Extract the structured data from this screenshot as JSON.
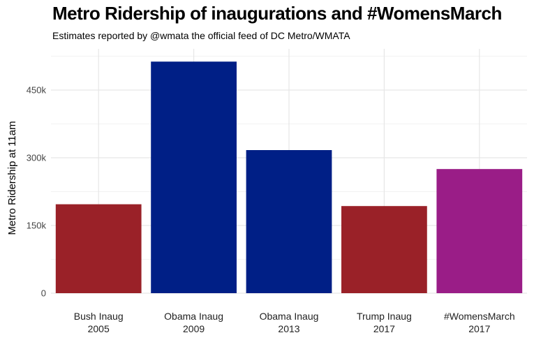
{
  "chart_data": {
    "type": "bar",
    "title": "Metro Ridership of inaugurations and #WomensMarch",
    "subtitle": "Estimates reported by @wmata the official feed of DC Metro/WMATA",
    "xlabel": "",
    "ylabel": "Metro Ridership at 11am",
    "ylim": [
      0,
      520000
    ],
    "yticks": [
      0,
      150000,
      300000,
      450000
    ],
    "ytick_labels": [
      "0",
      "150k",
      "300k",
      "450k"
    ],
    "grid": true,
    "categories": [
      [
        "Bush Inaug",
        "2005"
      ],
      [
        "Obama Inaug",
        "2009"
      ],
      [
        "Obama Inaug",
        "2013"
      ],
      [
        "Trump Inaug",
        "2017"
      ],
      [
        "#WomensMarch",
        "2017"
      ]
    ],
    "values": [
      197000,
      513000,
      317000,
      193000,
      275000
    ],
    "colors": [
      "#9a2128",
      "#001f86",
      "#001f86",
      "#9a2128",
      "#9a1d87"
    ]
  }
}
